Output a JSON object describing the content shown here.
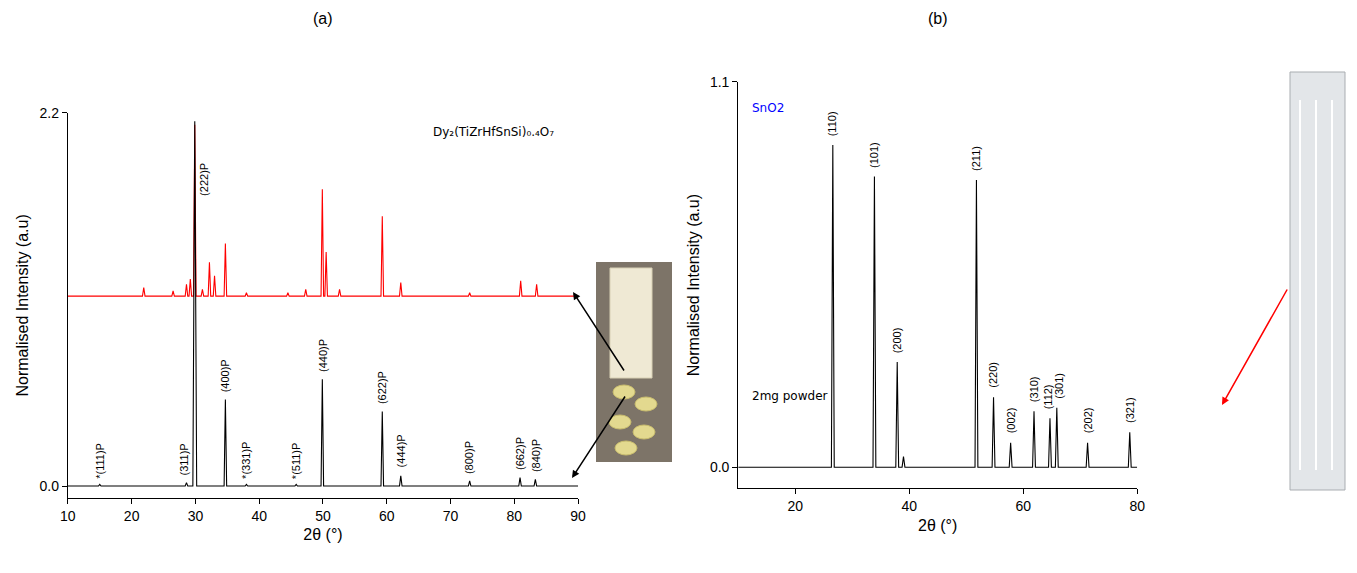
{
  "chart_data": [
    {
      "type": "line",
      "title": "(a)",
      "x_label": "2θ (°)",
      "y_label": "Normalised Intensity (a.u)",
      "xlim": [
        10,
        90
      ],
      "xticks": [
        10,
        20,
        30,
        40,
        50,
        60,
        70,
        80,
        90
      ],
      "ylim": [
        -0.07,
        2.2
      ],
      "yticks": [
        {
          "value": 0,
          "label": "0.0"
        },
        {
          "value": 2.2,
          "label": "2.2"
        }
      ],
      "grid": false,
      "series": [
        {
          "color": "#ff0000",
          "x": [
            10,
            21.7,
            21.9,
            22.1,
            26.3,
            26.5,
            26.7,
            28.4,
            28.6,
            28.8,
            29.0,
            29.2,
            29.4,
            29.7,
            29.9,
            30.1,
            30.9,
            31.1,
            31.3,
            32.0,
            32.2,
            32.4,
            32.8,
            33.0,
            33.2,
            34.5,
            34.7,
            34.9,
            37.8,
            38.0,
            38.2,
            44.3,
            44.5,
            44.7,
            47.1,
            47.3,
            47.5,
            49.7,
            49.9,
            50.1,
            50.3,
            50.5,
            50.7,
            52.4,
            52.6,
            52.8,
            59.1,
            59.3,
            59.5,
            62.0,
            62.2,
            62.4,
            72.8,
            73.0,
            73.2,
            80.8,
            81.0,
            81.2,
            83.3,
            83.5,
            83.7,
            90
          ],
          "values": [
            1.12,
            1.12,
            1.17,
            1.12,
            1.12,
            1.15,
            1.12,
            1.12,
            1.19,
            1.12,
            1.12,
            1.22,
            1.12,
            1.12,
            2.13,
            1.12,
            1.12,
            1.16,
            1.12,
            1.12,
            1.32,
            1.12,
            1.12,
            1.24,
            1.12,
            1.12,
            1.43,
            1.12,
            1.12,
            1.14,
            1.12,
            1.12,
            1.14,
            1.12,
            1.12,
            1.16,
            1.12,
            1.12,
            1.75,
            1.12,
            1.12,
            1.38,
            1.12,
            1.12,
            1.16,
            1.12,
            1.12,
            1.59,
            1.12,
            1.12,
            1.2,
            1.12,
            1.12,
            1.14,
            1.12,
            1.12,
            1.21,
            1.12,
            1.12,
            1.19,
            1.12,
            1.12
          ]
        },
        {
          "color": "#000000",
          "x": [
            10,
            14.8,
            15,
            15.2,
            28.4,
            28.6,
            28.8,
            29.6,
            29.9,
            30.2,
            34.5,
            34.7,
            34.9,
            37.8,
            38,
            38.2,
            45.6,
            45.8,
            46,
            49.7,
            49.9,
            50.1,
            59.1,
            59.3,
            59.5,
            62,
            62.2,
            62.4,
            72.8,
            73,
            73.2,
            80.7,
            80.9,
            81.1,
            83.1,
            83.3,
            83.5,
            90
          ],
          "values": [
            0,
            0,
            0.01,
            0,
            0,
            0.02,
            0,
            0,
            2.15,
            0,
            0,
            0.51,
            0,
            0,
            0.01,
            0,
            0,
            0.01,
            0,
            0,
            0.63,
            0,
            0,
            0.44,
            0,
            0,
            0.06,
            0,
            0,
            0.03,
            0,
            0,
            0.05,
            0,
            0,
            0.04,
            0,
            0
          ]
        }
      ],
      "peak_labels": [
        {
          "text": "*(111)P",
          "x": 15,
          "y": 0.03
        },
        {
          "text": "(311)P",
          "x": 28.2,
          "y": 0.05
        },
        {
          "text": "(222)P",
          "x": 31.3,
          "y": 1.7
        },
        {
          "text": "(400)P",
          "x": 34.7,
          "y": 0.54
        },
        {
          "text": "*(331)P",
          "x": 38,
          "y": 0.03
        },
        {
          "text": "*(511)P",
          "x": 45.8,
          "y": 0.03
        },
        {
          "text": "(440)P",
          "x": 49.9,
          "y": 0.66
        },
        {
          "text": "(622)P",
          "x": 59.3,
          "y": 0.47
        },
        {
          "text": "(444)P",
          "x": 62.2,
          "y": 0.1
        },
        {
          "text": "(800)P",
          "x": 73,
          "y": 0.06
        },
        {
          "text": "(662)P",
          "x": 80.9,
          "y": 0.08
        },
        {
          "text": "(840)P",
          "x": 83.3,
          "y": 0.07
        }
      ],
      "annotations": [
        {
          "text": "Dy₂(TiZrHfSnSi)₀.₄O₇",
          "x": 67,
          "y": 2.14,
          "color": "#000000"
        }
      ]
    },
    {
      "type": "line",
      "title": "(b)",
      "x_label": "2θ (°)",
      "y_label": "Normalised Intensity (a.u)",
      "xlim": [
        10,
        80
      ],
      "xticks": [
        20,
        40,
        60,
        80
      ],
      "ylim": [
        -0.06,
        1.1
      ],
      "yticks": [
        {
          "value": 0,
          "label": "0.0"
        },
        {
          "value": 1.1,
          "label": "1.1"
        }
      ],
      "grid": false,
      "series": [
        {
          "color": "#000000",
          "x": [
            10,
            26.35,
            26.6,
            26.85,
            33.65,
            33.9,
            34.15,
            37.65,
            37.9,
            38.15,
            38.75,
            39.0,
            39.25,
            51.55,
            51.8,
            52.05,
            54.55,
            54.8,
            55.05,
            57.55,
            57.8,
            58.05,
            61.65,
            61.9,
            62.15,
            64.45,
            64.7,
            64.95,
            65.65,
            65.9,
            66.15,
            71.05,
            71.3,
            71.55,
            78.45,
            78.7,
            78.95,
            80
          ],
          "values": [
            0,
            0,
            0.92,
            0,
            0,
            0.83,
            0,
            0,
            0.3,
            0,
            0,
            0.03,
            0,
            0,
            0.82,
            0,
            0,
            0.2,
            0,
            0,
            0.07,
            0,
            0,
            0.16,
            0,
            0,
            0.14,
            0,
            0,
            0.17,
            0,
            0,
            0.07,
            0,
            0,
            0.1,
            0,
            0
          ]
        }
      ],
      "peak_labels": [
        {
          "text": "(110)",
          "x": 26.6,
          "y": 0.94
        },
        {
          "text": "(101)",
          "x": 33.9,
          "y": 0.85
        },
        {
          "text": "(200)",
          "x": 37.9,
          "y": 0.32
        },
        {
          "text": "(211)",
          "x": 51.8,
          "y": 0.84
        },
        {
          "text": "(220)",
          "x": 54.8,
          "y": 0.22
        },
        {
          "text": "(002)",
          "x": 57.8,
          "y": 0.09
        },
        {
          "text": "(310)",
          "x": 61.9,
          "y": 0.18
        },
        {
          "text": "(112)",
          "x": 64.3,
          "y": 0.16
        },
        {
          "text": "(301)",
          "x": 66.3,
          "y": 0.19
        },
        {
          "text": "(202)",
          "x": 71.3,
          "y": 0.09
        },
        {
          "text": "(321)",
          "x": 78.7,
          "y": 0.12
        }
      ],
      "annotations": [
        {
          "text": "SnO2",
          "x": 12,
          "y": 1.05,
          "color": "#0000ff"
        },
        {
          "text": "2mg powder",
          "x": 12,
          "y": 0.23,
          "color": "#000000"
        }
      ]
    }
  ]
}
